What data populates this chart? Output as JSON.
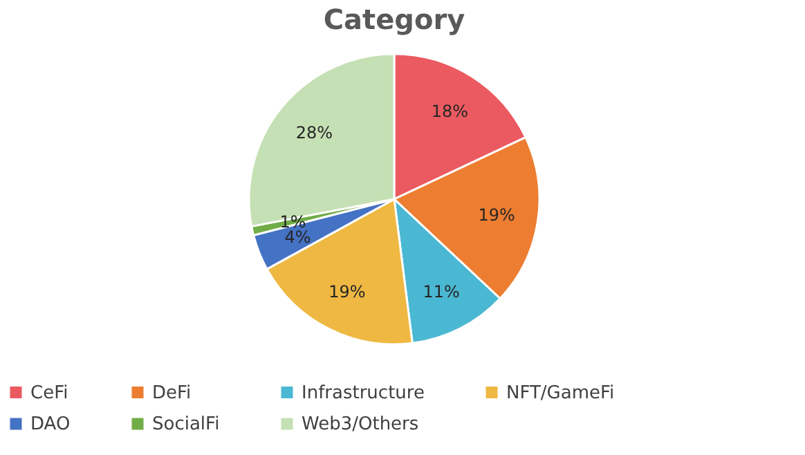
{
  "chart_data": {
    "type": "pie",
    "title": "Category",
    "categories": [
      "CeFi",
      "DeFi",
      "Infrastructure",
      "NFT/GameFi",
      "DAO",
      "SocialFi",
      "Web3/Others"
    ],
    "values": [
      18,
      19,
      11,
      19,
      4,
      1,
      28
    ],
    "colors": [
      "#eb5a60",
      "#ed7d31",
      "#4bb8d3",
      "#efb842",
      "#4472c4",
      "#70ad47",
      "#c5e0b4"
    ],
    "value_labels": [
      "18%",
      "19%",
      "11%",
      "19%",
      "4%",
      "1%",
      "28%"
    ],
    "legend": "bottom"
  }
}
